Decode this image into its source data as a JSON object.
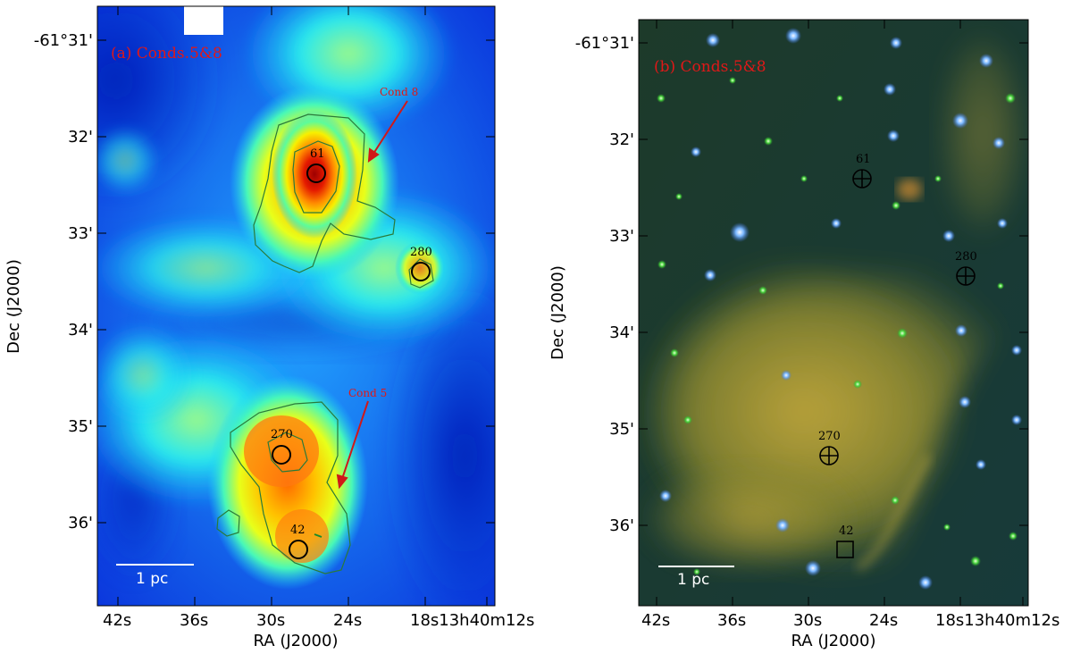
{
  "panels": [
    {
      "id": "a",
      "label": "(a) Conds.5&8",
      "xlabel": "RA (J2000)",
      "ylabel": "Dec (J2000)",
      "xticks": [
        "42s",
        "36s",
        "30s",
        "24s",
        "18s13h40m12s"
      ],
      "yticks": [
        "-61°31'",
        "32'",
        "33'",
        "34'",
        "35'",
        "36'"
      ],
      "scalebar_label": "1 pc",
      "annotations": [
        {
          "label": "Cond 8"
        },
        {
          "label": "Cond 5"
        }
      ],
      "sources": [
        "61",
        "280",
        "270",
        "42"
      ]
    },
    {
      "id": "b",
      "label": "(b) Conds.5&8",
      "xlabel": "RA (J2000)",
      "ylabel": "Dec (J2000)",
      "xticks": [
        "42s",
        "36s",
        "30s",
        "24s",
        "18s13h40m12s"
      ],
      "yticks": [
        "-61°31'",
        "32'",
        "33'",
        "34'",
        "35'",
        "36'"
      ],
      "scalebar_label": "1 pc",
      "sources": [
        "61",
        "280",
        "270",
        "42"
      ]
    }
  ],
  "colors": {
    "label_red": "#e01818",
    "contour": "#2a7a3a",
    "arrow": "#d01818"
  }
}
